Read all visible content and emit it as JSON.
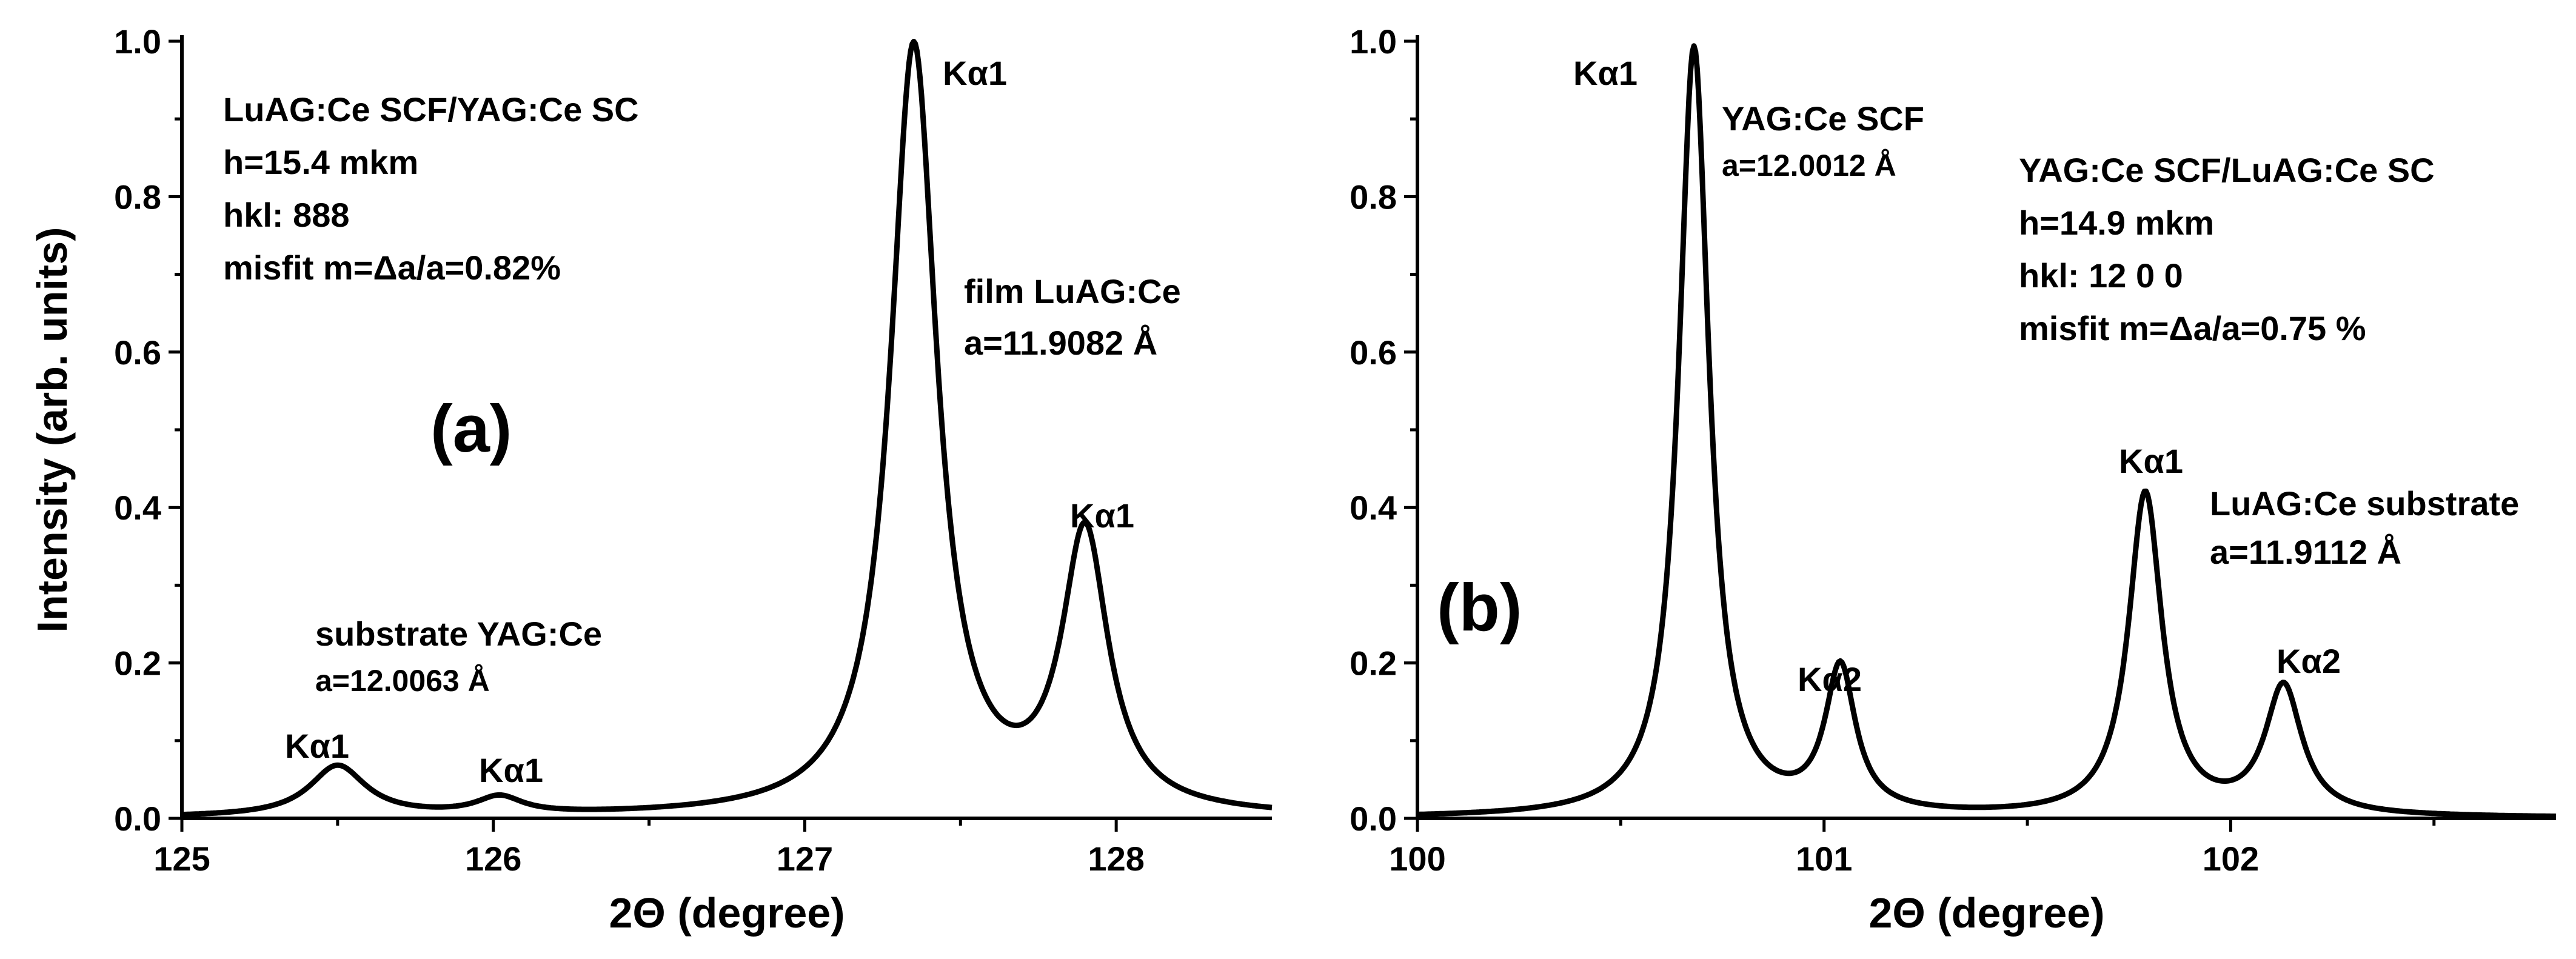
{
  "chart_data": [
    {
      "type": "line",
      "panel_label": "(a)",
      "xlabel": "2Θ (degree)",
      "ylabel": "Intensity (arb. units)",
      "xlim": [
        125.0,
        128.5
      ],
      "ylim": [
        0.0,
        1.0
      ],
      "xticks": [
        125,
        126,
        127,
        128
      ],
      "xtick_labels": [
        "125",
        "126",
        "127",
        "128"
      ],
      "yticks": [
        0.0,
        0.2,
        0.4,
        0.6,
        0.8,
        1.0
      ],
      "ytick_labels": [
        "0.0",
        "0.2",
        "0.4",
        "0.6",
        "0.8",
        "1.0"
      ],
      "series": [
        {
          "name": "LuAG:Ce SCF/YAG:Ce SC",
          "peaks": [
            {
              "center": 125.5,
              "height": 0.065,
              "width": 0.11
            },
            {
              "center": 126.02,
              "height": 0.022,
              "width": 0.09
            },
            {
              "center": 127.35,
              "height": 0.99,
              "width": 0.09
            },
            {
              "center": 127.9,
              "height": 0.355,
              "width": 0.09
            }
          ]
        }
      ],
      "info_lines": [
        "LuAG:Ce SCF/YAG:Ce SC",
        "h=15.4 mkm",
        "hkl: 888",
        "misfit m=Δa/a=0.82%"
      ],
      "annotations": [
        {
          "text": "Kα1"
        },
        {
          "text": "film LuAG:Ce"
        },
        {
          "text": "a=11.9082 Å"
        },
        {
          "text": "Kα1"
        },
        {
          "text": "substrate YAG:Ce"
        },
        {
          "text": "a=12.0063 Å"
        },
        {
          "text": "Kα1"
        },
        {
          "text": "Kα1"
        }
      ]
    },
    {
      "type": "line",
      "panel_label": "(b)",
      "xlabel": "2Θ (degree)",
      "xlim": [
        100.0,
        102.8
      ],
      "ylim": [
        0.0,
        1.0
      ],
      "xticks": [
        100,
        101,
        102
      ],
      "xtick_labels": [
        "100",
        "101",
        "102"
      ],
      "yticks": [
        0.0,
        0.2,
        0.4,
        0.6,
        0.8,
        1.0
      ],
      "ytick_labels": [
        "0.0",
        "0.2",
        "0.4",
        "0.6",
        "0.8",
        "1.0"
      ],
      "series": [
        {
          "name": "YAG:Ce SCF/LuAG:Ce SC",
          "peaks": [
            {
              "center": 100.68,
              "height": 0.99,
              "width": 0.045
            },
            {
              "center": 101.04,
              "height": 0.185,
              "width": 0.045
            },
            {
              "center": 101.79,
              "height": 0.415,
              "width": 0.05
            },
            {
              "center": 102.13,
              "height": 0.165,
              "width": 0.055
            }
          ]
        }
      ],
      "info_lines": [
        "YAG:Ce SCF/LuAG:Ce SC",
        "h=14.9 mkm",
        "hkl: 12 0 0",
        "misfit m=Δa/a=0.75 %"
      ],
      "annotations": [
        {
          "text": "Kα1"
        },
        {
          "text": "YAG:Ce SCF"
        },
        {
          "text": "a=12.0012 Å"
        },
        {
          "text": "Kα2"
        },
        {
          "text": "Kα1"
        },
        {
          "text": "LuAG:Ce substrate"
        },
        {
          "text": "a=11.9112 Å"
        },
        {
          "text": "Kα2"
        }
      ]
    }
  ]
}
